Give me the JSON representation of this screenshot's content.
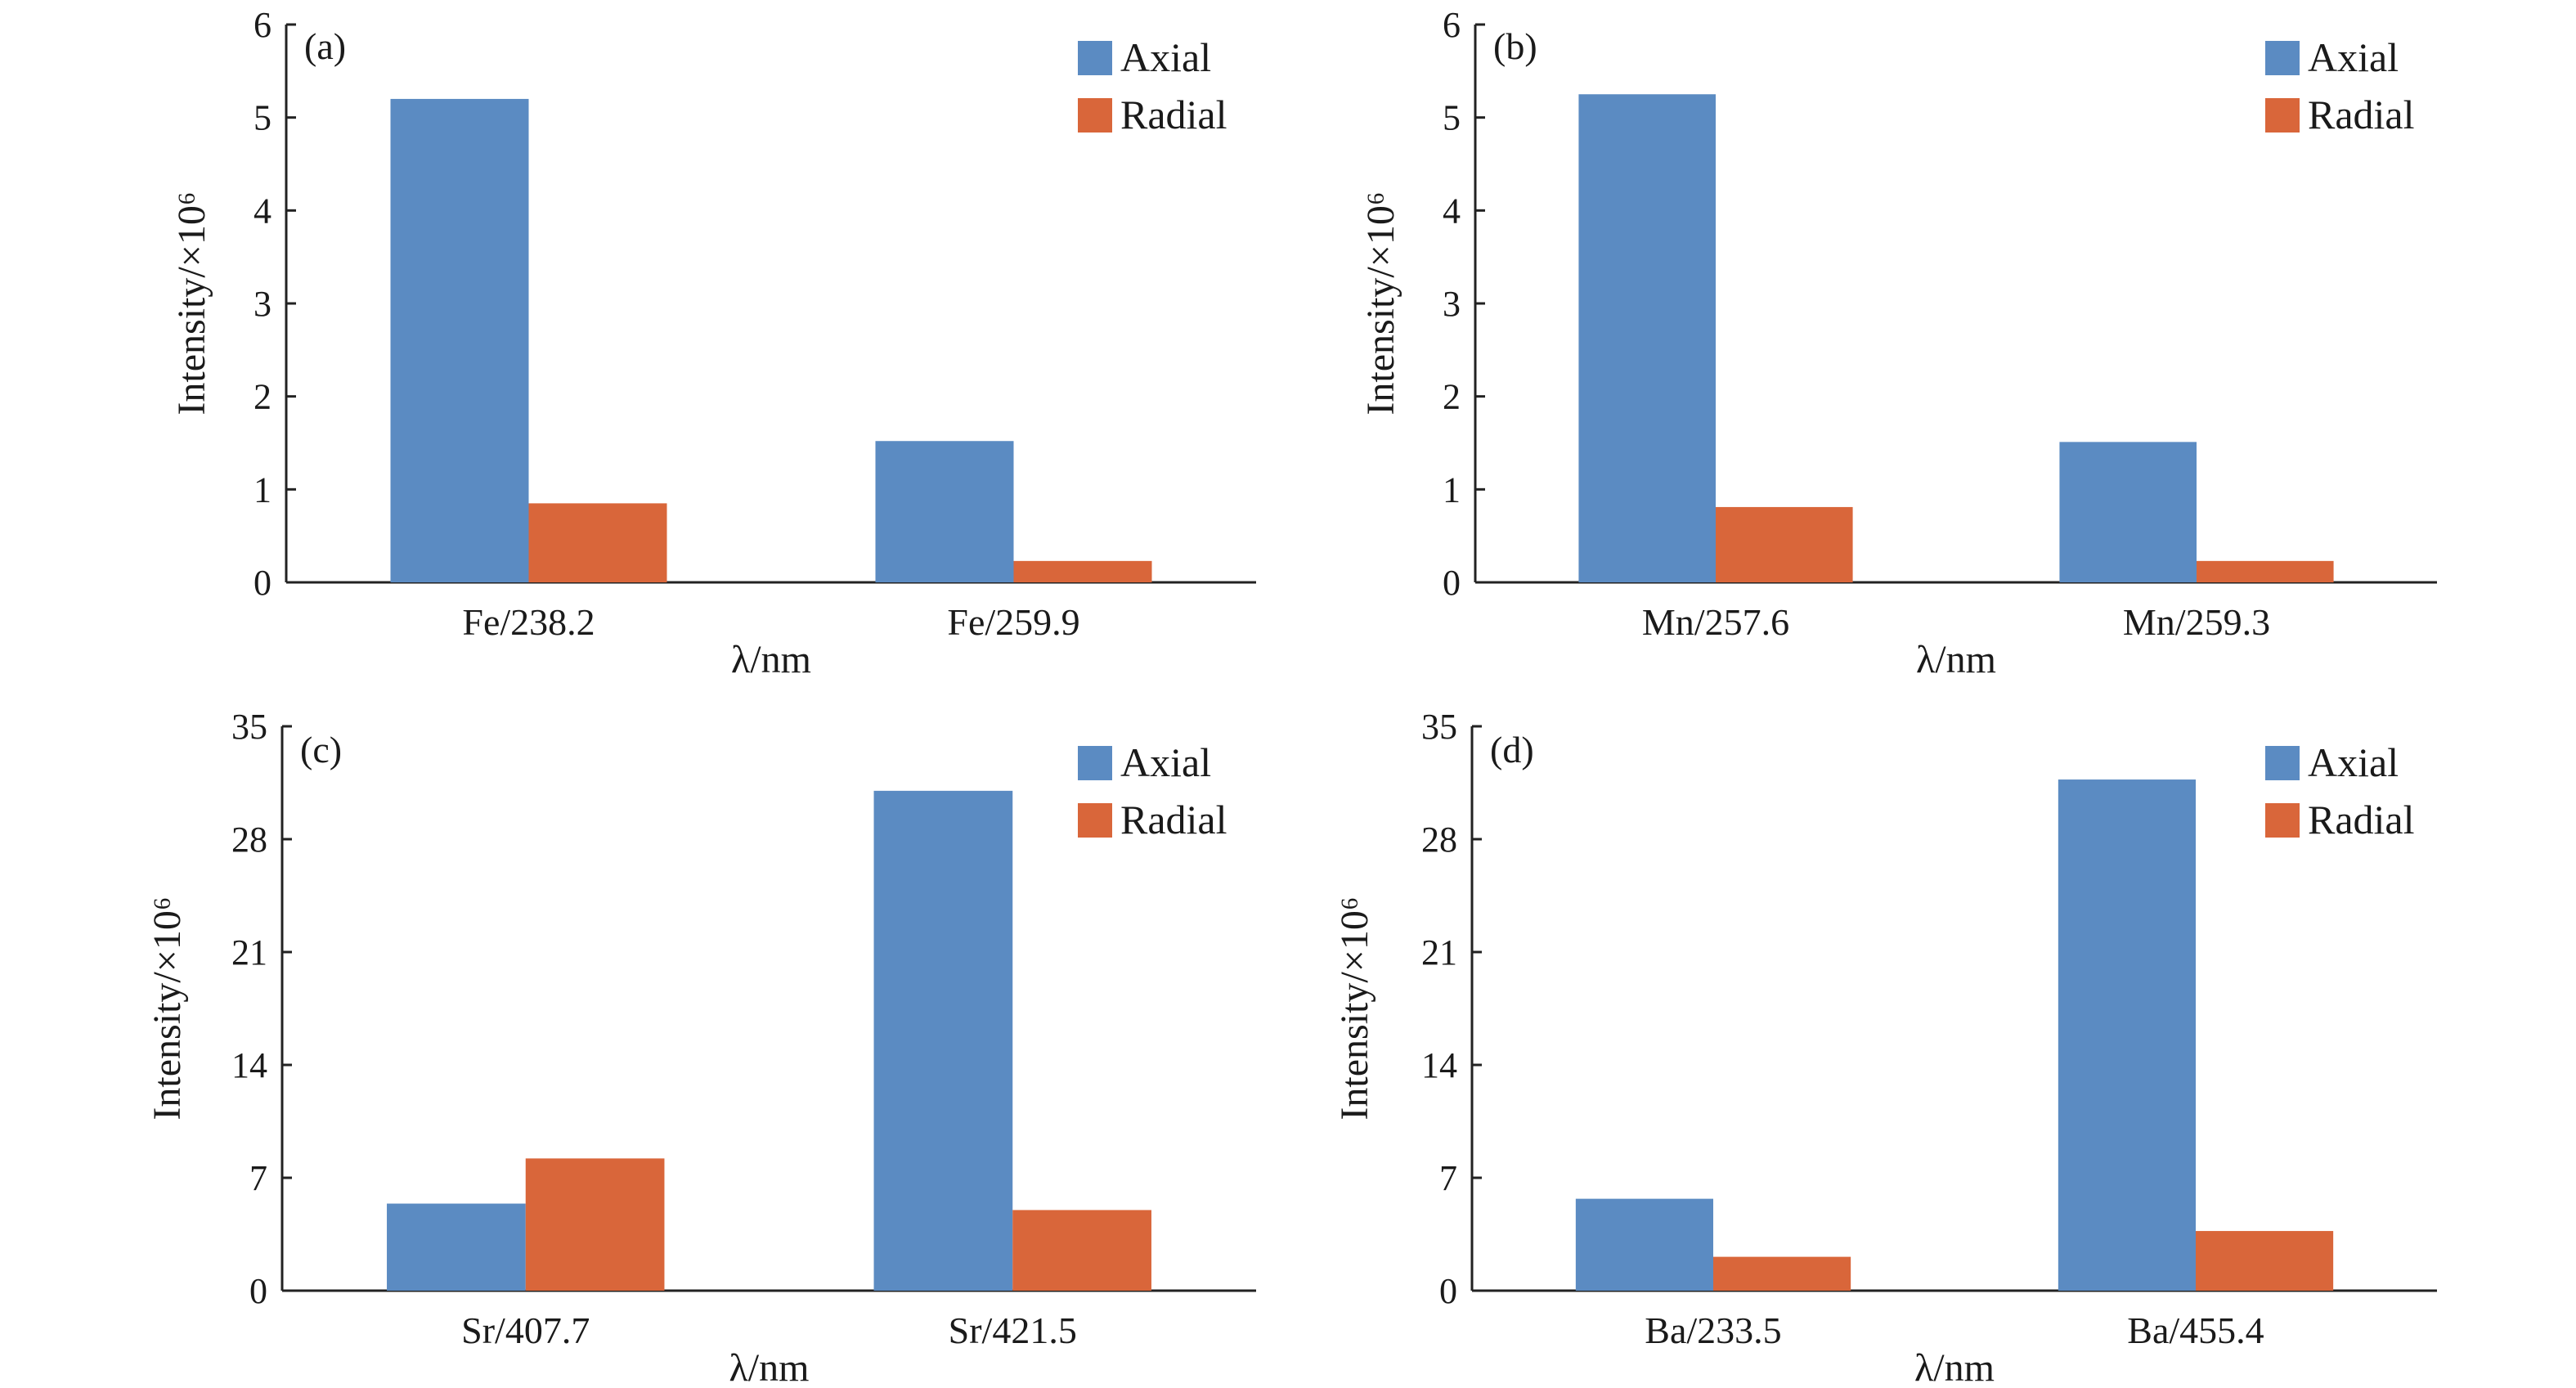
{
  "colors": {
    "axial": "#5b8bc2",
    "radial": "#d9663a"
  },
  "chart_data": [
    {
      "type": "bar",
      "panel": "(a)",
      "categories": [
        "Fe/238.2",
        "Fe/259.9"
      ],
      "series": [
        {
          "name": "Axial",
          "values": [
            5.2,
            1.52
          ]
        },
        {
          "name": "Radial",
          "values": [
            0.85,
            0.23
          ]
        }
      ],
      "xlabel": "λ/nm",
      "ylabel": "Intensity/×10⁶",
      "ylim": [
        0,
        6
      ],
      "yticks": [
        "0",
        "1",
        "2",
        "3",
        "4",
        "5",
        "6"
      ],
      "legend": "top-right",
      "grid": false
    },
    {
      "type": "bar",
      "panel": "(b)",
      "categories": [
        "Mn/257.6",
        "Mn/259.3"
      ],
      "series": [
        {
          "name": "Axial",
          "values": [
            5.25,
            1.51
          ]
        },
        {
          "name": "Radial",
          "values": [
            0.81,
            0.23
          ]
        }
      ],
      "xlabel": "λ/nm",
      "ylabel": "Intensity/×10⁶",
      "ylim": [
        0,
        6
      ],
      "yticks": [
        "0",
        "1",
        "2",
        "3",
        "4",
        "5",
        "6"
      ],
      "legend": "top-right",
      "grid": false
    },
    {
      "type": "bar",
      "panel": "(c)",
      "categories": [
        "Sr/407.7",
        "Sr/421.5"
      ],
      "series": [
        {
          "name": "Axial",
          "values": [
            5.4,
            31.0
          ]
        },
        {
          "name": "Radial",
          "values": [
            8.2,
            5.0
          ]
        }
      ],
      "xlabel": "λ/nm",
      "ylabel": "Intensity/×10⁶",
      "ylim": [
        0,
        35
      ],
      "yticks": [
        "0",
        "7",
        "14",
        "21",
        "28",
        "35"
      ],
      "legend": "top-right",
      "grid": false
    },
    {
      "type": "bar",
      "panel": "(d)",
      "categories": [
        "Ba/233.5",
        "Ba/455.4"
      ],
      "series": [
        {
          "name": "Axial",
          "values": [
            5.7,
            31.7
          ]
        },
        {
          "name": "Radial",
          "values": [
            2.1,
            3.7
          ]
        }
      ],
      "xlabel": "λ/nm",
      "ylabel": "Intensity/×10⁶",
      "ylim": [
        0,
        35
      ],
      "yticks": [
        "0",
        "7",
        "14",
        "21",
        "28",
        "35"
      ],
      "legend": "top-right",
      "grid": false
    }
  ]
}
